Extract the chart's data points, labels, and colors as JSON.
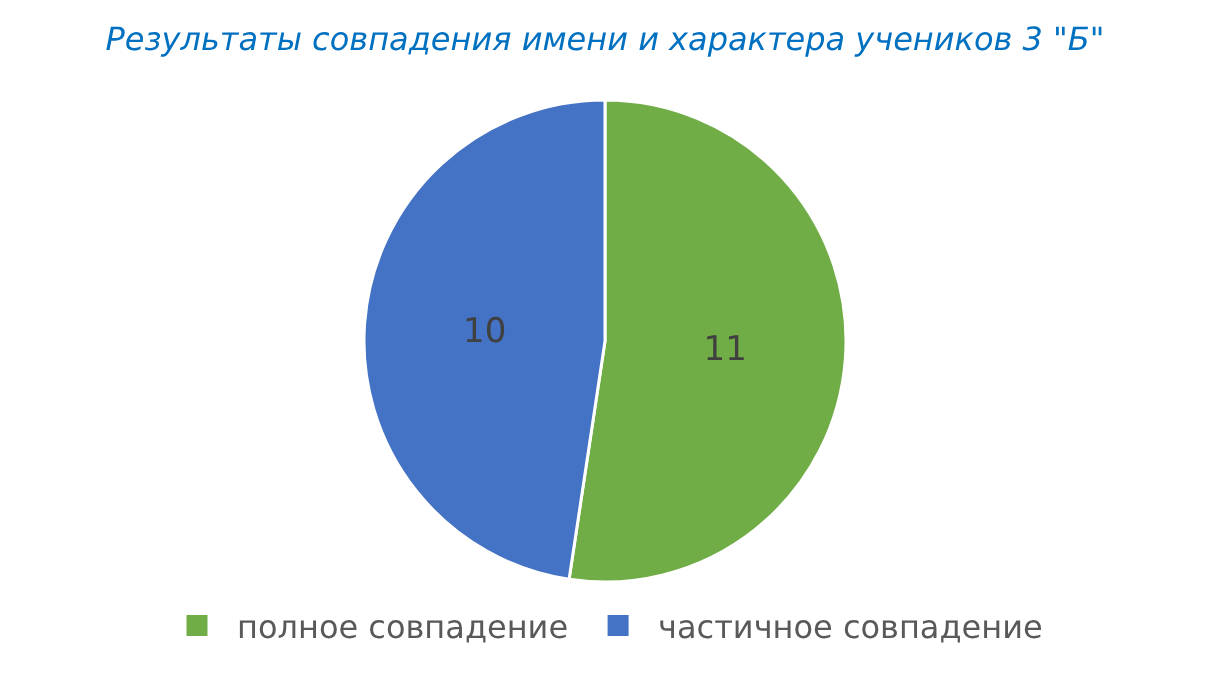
{
  "chart_data": {
    "type": "pie",
    "title": "Результаты совпадения имени и характера учеников 3 \"Б\"",
    "categories": [
      "полное совпадение",
      "частичное совпадение"
    ],
    "values": [
      11,
      10
    ],
    "colors": [
      "#70ad47",
      "#4472c4"
    ],
    "data_labels": true,
    "legend": "bottom"
  }
}
